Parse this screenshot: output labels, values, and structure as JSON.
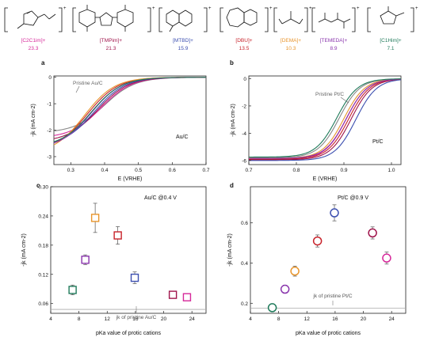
{
  "cations": [
    {
      "label": "[C2C1im]+",
      "value": "23.3",
      "color": "#d6289a"
    },
    {
      "label": "[TMPim]+",
      "value": "21.3",
      "color": "#a0154c"
    },
    {
      "label": "[MTBD]+",
      "value": "15.9",
      "color": "#3c4fb0"
    },
    {
      "label": "[DBU]+",
      "value": "13.5",
      "color": "#c8222a"
    },
    {
      "label": "[DEMA]+",
      "value": "10.3",
      "color": "#e8952c"
    },
    {
      "label": "[TEMEDA]+",
      "value": "8.9",
      "color": "#8a35ad"
    },
    {
      "label": "[C1Him]+",
      "value": "7.1",
      "color": "#1f7a5a"
    }
  ],
  "chart_data": [
    {
      "panel": "a",
      "type": "line",
      "xlabel": "E (VRHE)",
      "ylabel": "-jk (mA cm-2)",
      "xlim": [
        0.25,
        0.7
      ],
      "ylim": [
        -3.3,
        0.05
      ],
      "xticks": [
        0.3,
        0.4,
        0.5,
        0.6,
        0.7
      ],
      "yticks": [
        0,
        -1,
        -2,
        -3
      ],
      "annotation": "Pristine Au/C",
      "corner_label": "Au/C",
      "curve_model": {
        "shape": "cathodic sigmoid",
        "series": [
          {
            "name": "Pristine Au/C",
            "color": "#888888",
            "midpoint": 0.4,
            "limit": -2.1
          },
          {
            "name": "[C2C1im]+",
            "color": "#d6289a",
            "midpoint": 0.39,
            "limit": -2.3
          },
          {
            "name": "[TMPim]+",
            "color": "#a0154c",
            "midpoint": 0.38,
            "limit": -2.45
          },
          {
            "name": "[MTBD]+",
            "color": "#3c4fb0",
            "midpoint": 0.37,
            "limit": -2.6
          },
          {
            "name": "[DBU]+",
            "color": "#c8222a",
            "midpoint": 0.35,
            "limit": -2.75
          },
          {
            "name": "[DEMA]+",
            "color": "#e8952c",
            "midpoint": 0.34,
            "limit": -2.9
          },
          {
            "name": "[TEMEDA]+",
            "color": "#8a35ad",
            "midpoint": 0.36,
            "limit": -2.7
          },
          {
            "name": "[C1Him]+",
            "color": "#1f7a5a",
            "midpoint": 0.36,
            "limit": -2.65
          }
        ]
      }
    },
    {
      "panel": "b",
      "type": "line",
      "xlabel": "E (VRHE)",
      "ylabel": "-jk (mA cm-2)",
      "xlim": [
        0.7,
        1.02
      ],
      "ylim": [
        -6.3,
        0.2
      ],
      "xticks": [
        0.7,
        0.8,
        0.9,
        1.0
      ],
      "yticks": [
        0,
        -2,
        -4,
        -6
      ],
      "annotation": "Pristine Pt/C",
      "corner_label": "Pt/C",
      "curve_model": {
        "shape": "cathodic sigmoid",
        "series": [
          {
            "name": "Pristine Pt/C",
            "color": "#888888",
            "midpoint": 0.89,
            "limit": -5.8
          },
          {
            "name": "[C2C1im]+",
            "color": "#d6289a",
            "midpoint": 0.905,
            "limit": -5.9
          },
          {
            "name": "[TMPim]+",
            "color": "#a0154c",
            "midpoint": 0.915,
            "limit": -5.95
          },
          {
            "name": "[MTBD]+",
            "color": "#3c4fb0",
            "midpoint": 0.925,
            "limit": -6.0
          },
          {
            "name": "[DBU]+",
            "color": "#c8222a",
            "midpoint": 0.91,
            "limit": -5.9
          },
          {
            "name": "[DEMA]+",
            "color": "#e8952c",
            "midpoint": 0.9,
            "limit": -5.85
          },
          {
            "name": "[TEMEDA]+",
            "color": "#8a35ad",
            "midpoint": 0.905,
            "limit": -5.85
          },
          {
            "name": "[C1Him]+",
            "color": "#1f7a5a",
            "midpoint": 0.885,
            "limit": -5.75
          }
        ]
      }
    },
    {
      "panel": "c",
      "type": "scatter",
      "title": "Au/C @0.4 V",
      "xlabel": "pKa value of protic cations",
      "ylabel": "-jk (mA cm-2)",
      "xlim": [
        4,
        26
      ],
      "ylim": [
        0.04,
        0.3
      ],
      "xticks": [
        4,
        8,
        12,
        16,
        20,
        24
      ],
      "yticks": [
        0.06,
        0.12,
        0.18,
        0.24,
        0.3
      ],
      "baseline": {
        "value": 0.048,
        "label": "jk of pristine Au/C"
      },
      "points": [
        {
          "x": 7.1,
          "y": 0.088,
          "err": 0.01,
          "color": "#1f7a5a"
        },
        {
          "x": 8.9,
          "y": 0.15,
          "err": 0.01,
          "color": "#8a35ad"
        },
        {
          "x": 10.3,
          "y": 0.236,
          "err": 0.03,
          "color": "#e8952c"
        },
        {
          "x": 13.5,
          "y": 0.2,
          "err": 0.018,
          "color": "#c8222a"
        },
        {
          "x": 15.9,
          "y": 0.113,
          "err": 0.012,
          "color": "#3c4fb0"
        },
        {
          "x": 21.3,
          "y": 0.078,
          "err": 0.005,
          "color": "#a0154c"
        },
        {
          "x": 23.3,
          "y": 0.073,
          "err": 0.004,
          "color": "#d6289a"
        }
      ]
    },
    {
      "panel": "d",
      "type": "scatter",
      "title": "Pt/C @0.9 V",
      "xlabel": "pKa value of protic cations",
      "ylabel": "-jk (mA cm-2)",
      "xlim": [
        4,
        26
      ],
      "ylim": [
        0.15,
        0.78
      ],
      "xticks": [
        4,
        8,
        12,
        16,
        20,
        24
      ],
      "yticks": [
        0.2,
        0.4,
        0.6
      ],
      "baseline": {
        "value": 0.175,
        "label": "jk of pristine Pt/C"
      },
      "points": [
        {
          "x": 7.1,
          "y": 0.178,
          "err": 0.01,
          "color": "#1f7a5a"
        },
        {
          "x": 8.9,
          "y": 0.27,
          "err": 0.02,
          "color": "#8a35ad"
        },
        {
          "x": 10.3,
          "y": 0.36,
          "err": 0.025,
          "color": "#e8952c"
        },
        {
          "x": 13.5,
          "y": 0.51,
          "err": 0.03,
          "color": "#c8222a"
        },
        {
          "x": 15.9,
          "y": 0.65,
          "err": 0.04,
          "color": "#3c4fb0"
        },
        {
          "x": 21.3,
          "y": 0.55,
          "err": 0.03,
          "color": "#a0154c"
        },
        {
          "x": 23.3,
          "y": 0.425,
          "err": 0.03,
          "color": "#d6289a"
        }
      ]
    }
  ]
}
